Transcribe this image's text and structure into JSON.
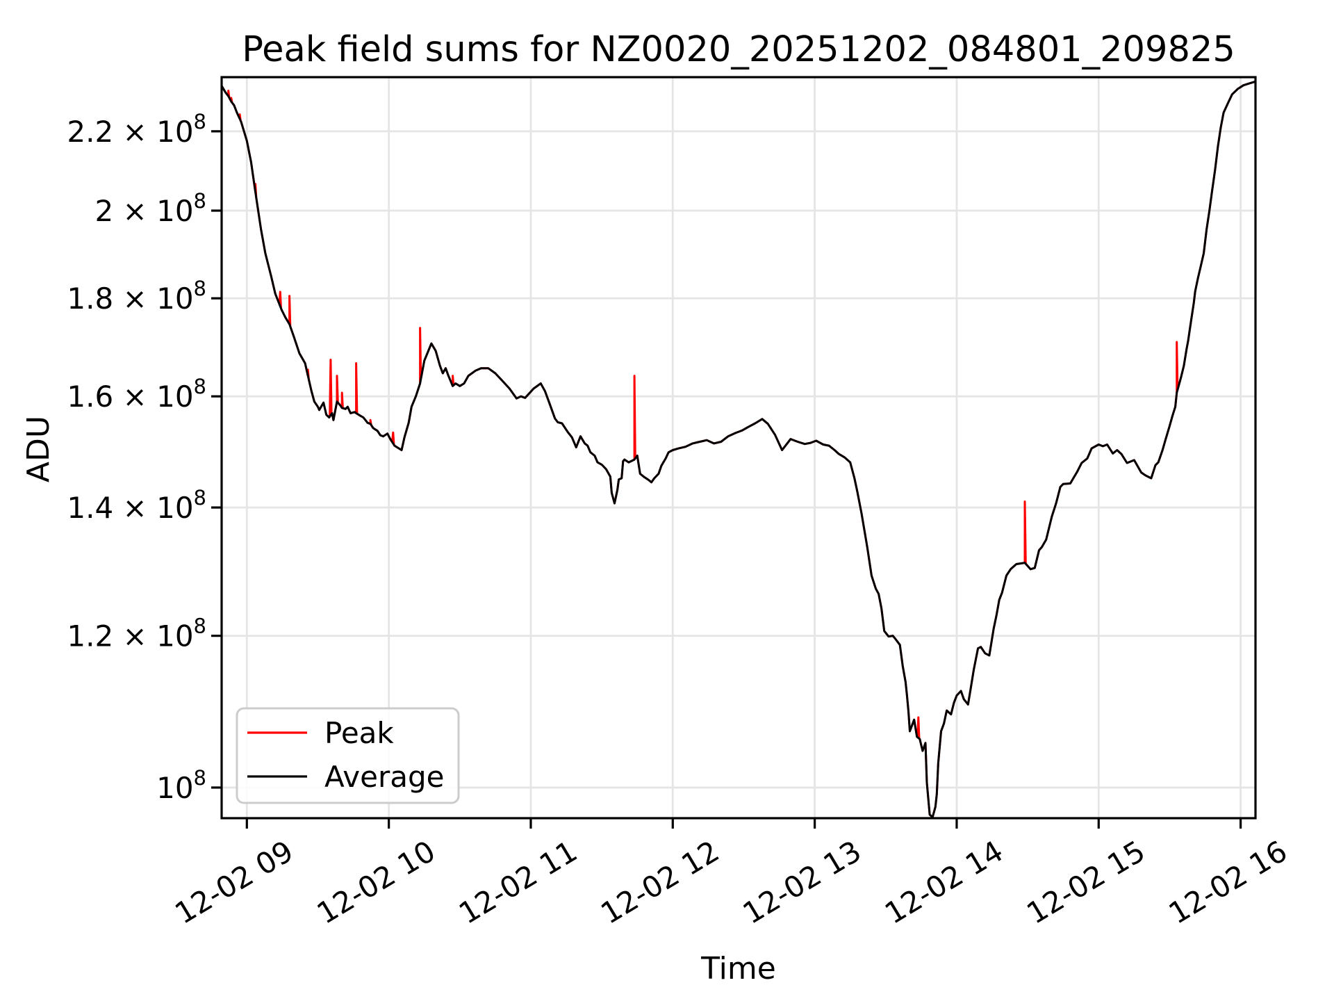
{
  "chart_data": {
    "type": "line",
    "title": "Peak field sums for NZ0020_20251202_084801_209825",
    "xlabel": "Time",
    "ylabel": "ADU",
    "x_unit": "decimal hours on 2025-12-02",
    "value_unit": "ADU in units of 1e8",
    "yscale": "log",
    "grid": true,
    "legend_position": "lower left",
    "xlim_hours": [
      8.82,
      16.11
    ],
    "ylim_e8": [
      0.963,
      2.35
    ],
    "x_ticks": {
      "hours": [
        9,
        10,
        11,
        12,
        13,
        14,
        15,
        16
      ],
      "labels": [
        "12-02 09",
        "12-02 10",
        "12-02 11",
        "12-02 12",
        "12-02 13",
        "12-02 14",
        "12-02 15",
        "12-02 16"
      ]
    },
    "y_ticks": [
      {
        "value_e8": 2.2,
        "mantissa": "2.2 × 10",
        "exponent": "8"
      },
      {
        "value_e8": 2.0,
        "mantissa": "2 × 10",
        "exponent": "8"
      },
      {
        "value_e8": 1.8,
        "mantissa": "1.8 × 10",
        "exponent": "8"
      },
      {
        "value_e8": 1.6,
        "mantissa": "1.6 × 10",
        "exponent": "8"
      },
      {
        "value_e8": 1.4,
        "mantissa": "1.4 × 10",
        "exponent": "8"
      },
      {
        "value_e8": 1.2,
        "mantissa": "1.2 × 10",
        "exponent": "8"
      },
      {
        "value_e8": 1.0,
        "mantissa": "10",
        "exponent": "8"
      }
    ],
    "series": {
      "average": {
        "name": "Average",
        "color": "#000000",
        "points": [
          [
            8.82,
            2.325
          ],
          [
            8.85,
            2.305
          ],
          [
            8.87,
            2.295
          ],
          [
            8.89,
            2.28
          ],
          [
            8.91,
            2.27
          ],
          [
            8.93,
            2.25
          ],
          [
            8.96,
            2.225
          ],
          [
            9.0,
            2.175
          ],
          [
            9.03,
            2.12
          ],
          [
            9.06,
            2.045
          ],
          [
            9.08,
            2.0
          ],
          [
            9.1,
            1.955
          ],
          [
            9.13,
            1.9
          ],
          [
            9.17,
            1.85
          ],
          [
            9.2,
            1.81
          ],
          [
            9.245,
            1.775
          ],
          [
            9.27,
            1.76
          ],
          [
            9.3,
            1.745
          ],
          [
            9.33,
            1.72
          ],
          [
            9.37,
            1.685
          ],
          [
            9.41,
            1.665
          ],
          [
            9.43,
            1.64
          ],
          [
            9.455,
            1.61
          ],
          [
            9.475,
            1.59
          ],
          [
            9.5,
            1.58
          ],
          [
            9.51,
            1.574
          ],
          [
            9.54,
            1.588
          ],
          [
            9.56,
            1.565
          ],
          [
            9.58,
            1.56
          ],
          [
            9.6,
            1.568
          ],
          [
            9.61,
            1.555
          ],
          [
            9.635,
            1.59
          ],
          [
            9.66,
            1.582
          ],
          [
            9.67,
            1.578
          ],
          [
            9.695,
            1.576
          ],
          [
            9.71,
            1.58
          ],
          [
            9.73,
            1.568
          ],
          [
            9.76,
            1.57
          ],
          [
            9.77,
            1.568
          ],
          [
            9.8,
            1.563
          ],
          [
            9.82,
            1.56
          ],
          [
            9.85,
            1.55
          ],
          [
            9.87,
            1.548
          ],
          [
            9.89,
            1.54
          ],
          [
            9.92,
            1.535
          ],
          [
            9.94,
            1.527
          ],
          [
            9.96,
            1.525
          ],
          [
            9.99,
            1.53
          ],
          [
            10.01,
            1.52
          ],
          [
            10.04,
            1.508
          ],
          [
            10.09,
            1.5
          ],
          [
            10.11,
            1.523
          ],
          [
            10.14,
            1.55
          ],
          [
            10.16,
            1.58
          ],
          [
            10.19,
            1.6
          ],
          [
            10.22,
            1.625
          ],
          [
            10.25,
            1.67
          ],
          [
            10.3,
            1.705
          ],
          [
            10.33,
            1.69
          ],
          [
            10.36,
            1.66
          ],
          [
            10.38,
            1.645
          ],
          [
            10.4,
            1.655
          ],
          [
            10.42,
            1.64
          ],
          [
            10.45,
            1.62
          ],
          [
            10.47,
            1.625
          ],
          [
            10.5,
            1.62
          ],
          [
            10.53,
            1.625
          ],
          [
            10.56,
            1.64
          ],
          [
            10.61,
            1.65
          ],
          [
            10.65,
            1.655
          ],
          [
            10.7,
            1.655
          ],
          [
            10.75,
            1.645
          ],
          [
            10.8,
            1.63
          ],
          [
            10.85,
            1.615
          ],
          [
            10.9,
            1.596
          ],
          [
            10.93,
            1.6
          ],
          [
            10.96,
            1.597
          ],
          [
            11.02,
            1.615
          ],
          [
            11.07,
            1.625
          ],
          [
            11.1,
            1.61
          ],
          [
            11.13,
            1.588
          ],
          [
            11.17,
            1.558
          ],
          [
            11.19,
            1.551
          ],
          [
            11.22,
            1.549
          ],
          [
            11.26,
            1.533
          ],
          [
            11.29,
            1.523
          ],
          [
            11.32,
            1.505
          ],
          [
            11.35,
            1.525
          ],
          [
            11.38,
            1.512
          ],
          [
            11.4,
            1.508
          ],
          [
            11.42,
            1.496
          ],
          [
            11.45,
            1.49
          ],
          [
            11.47,
            1.478
          ],
          [
            11.5,
            1.474
          ],
          [
            11.53,
            1.466
          ],
          [
            11.56,
            1.453
          ],
          [
            11.57,
            1.425
          ],
          [
            11.59,
            1.407
          ],
          [
            11.61,
            1.43
          ],
          [
            11.62,
            1.448
          ],
          [
            11.64,
            1.45
          ],
          [
            11.65,
            1.48
          ],
          [
            11.66,
            1.483
          ],
          [
            11.69,
            1.478
          ],
          [
            11.73,
            1.483
          ],
          [
            11.75,
            1.49
          ],
          [
            11.77,
            1.458
          ],
          [
            11.8,
            1.452
          ],
          [
            11.83,
            1.447
          ],
          [
            11.85,
            1.443
          ],
          [
            11.87,
            1.45
          ],
          [
            11.9,
            1.458
          ],
          [
            11.92,
            1.472
          ],
          [
            11.95,
            1.485
          ],
          [
            11.97,
            1.496
          ],
          [
            12.0,
            1.5
          ],
          [
            12.04,
            1.503
          ],
          [
            12.09,
            1.506
          ],
          [
            12.14,
            1.512
          ],
          [
            12.19,
            1.515
          ],
          [
            12.24,
            1.518
          ],
          [
            12.29,
            1.512
          ],
          [
            12.34,
            1.515
          ],
          [
            12.39,
            1.525
          ],
          [
            12.44,
            1.531
          ],
          [
            12.49,
            1.536
          ],
          [
            12.53,
            1.542
          ],
          [
            12.58,
            1.549
          ],
          [
            12.63,
            1.557
          ],
          [
            12.67,
            1.548
          ],
          [
            12.72,
            1.528
          ],
          [
            12.77,
            1.5
          ],
          [
            12.83,
            1.52
          ],
          [
            12.88,
            1.515
          ],
          [
            12.93,
            1.511
          ],
          [
            12.97,
            1.513
          ],
          [
            13.01,
            1.517
          ],
          [
            13.06,
            1.51
          ],
          [
            13.1,
            1.508
          ],
          [
            13.14,
            1.5
          ],
          [
            13.17,
            1.493
          ],
          [
            13.21,
            1.487
          ],
          [
            13.25,
            1.478
          ],
          [
            13.28,
            1.45
          ],
          [
            13.3,
            1.427
          ],
          [
            13.33,
            1.39
          ],
          [
            13.37,
            1.335
          ],
          [
            13.4,
            1.29
          ],
          [
            13.43,
            1.27
          ],
          [
            13.45,
            1.262
          ],
          [
            13.47,
            1.24
          ],
          [
            13.49,
            1.207
          ],
          [
            13.52,
            1.199
          ],
          [
            13.55,
            1.2
          ],
          [
            13.57,
            1.195
          ],
          [
            13.6,
            1.187
          ],
          [
            13.62,
            1.157
          ],
          [
            13.64,
            1.135
          ],
          [
            13.65,
            1.117
          ],
          [
            13.66,
            1.096
          ],
          [
            13.67,
            1.07
          ],
          [
            13.7,
            1.085
          ],
          [
            13.72,
            1.063
          ],
          [
            13.74,
            1.06
          ],
          [
            13.76,
            1.045
          ],
          [
            13.78,
            1.055
          ],
          [
            13.79,
            1.006
          ],
          [
            13.81,
            0.968
          ],
          [
            13.83,
            0.965
          ],
          [
            13.85,
            0.977
          ],
          [
            13.86,
            0.992
          ],
          [
            13.87,
            1.03
          ],
          [
            13.89,
            1.07
          ],
          [
            13.91,
            1.08
          ],
          [
            13.93,
            1.097
          ],
          [
            13.96,
            1.092
          ],
          [
            13.98,
            1.107
          ],
          [
            14.0,
            1.117
          ],
          [
            14.03,
            1.123
          ],
          [
            14.05,
            1.112
          ],
          [
            14.08,
            1.105
          ],
          [
            14.1,
            1.128
          ],
          [
            14.12,
            1.152
          ],
          [
            14.15,
            1.182
          ],
          [
            14.17,
            1.184
          ],
          [
            14.2,
            1.175
          ],
          [
            14.23,
            1.172
          ],
          [
            14.26,
            1.21
          ],
          [
            14.28,
            1.23
          ],
          [
            14.3,
            1.253
          ],
          [
            14.32,
            1.264
          ],
          [
            14.35,
            1.29
          ],
          [
            14.38,
            1.3
          ],
          [
            14.42,
            1.308
          ],
          [
            14.48,
            1.31
          ],
          [
            14.52,
            1.3
          ],
          [
            14.55,
            1.302
          ],
          [
            14.58,
            1.33
          ],
          [
            14.6,
            1.335
          ],
          [
            14.63,
            1.347
          ],
          [
            14.67,
            1.385
          ],
          [
            14.7,
            1.407
          ],
          [
            14.73,
            1.435
          ],
          [
            14.75,
            1.44
          ],
          [
            14.8,
            1.441
          ],
          [
            14.85,
            1.462
          ],
          [
            14.88,
            1.477
          ],
          [
            14.92,
            1.485
          ],
          [
            14.95,
            1.503
          ],
          [
            15.0,
            1.51
          ],
          [
            15.03,
            1.507
          ],
          [
            15.06,
            1.51
          ],
          [
            15.1,
            1.494
          ],
          [
            15.13,
            1.5
          ],
          [
            15.16,
            1.493
          ],
          [
            15.2,
            1.477
          ],
          [
            15.25,
            1.482
          ],
          [
            15.3,
            1.46
          ],
          [
            15.33,
            1.455
          ],
          [
            15.37,
            1.45
          ],
          [
            15.4,
            1.473
          ],
          [
            15.42,
            1.478
          ],
          [
            15.45,
            1.5
          ],
          [
            15.47,
            1.518
          ],
          [
            15.5,
            1.544
          ],
          [
            15.52,
            1.563
          ],
          [
            15.54,
            1.58
          ],
          [
            15.55,
            1.607
          ],
          [
            15.58,
            1.637
          ],
          [
            15.6,
            1.66
          ],
          [
            15.62,
            1.695
          ],
          [
            15.63,
            1.71
          ],
          [
            15.65,
            1.75
          ],
          [
            15.67,
            1.79
          ],
          [
            15.68,
            1.815
          ],
          [
            15.7,
            1.845
          ],
          [
            15.72,
            1.872
          ],
          [
            15.74,
            1.9
          ],
          [
            15.76,
            1.955
          ],
          [
            15.78,
            2.0
          ],
          [
            15.8,
            2.05
          ],
          [
            15.82,
            2.1
          ],
          [
            15.84,
            2.16
          ],
          [
            15.86,
            2.21
          ],
          [
            15.88,
            2.25
          ],
          [
            15.91,
            2.275
          ],
          [
            15.94,
            2.3
          ],
          [
            15.98,
            2.315
          ],
          [
            16.02,
            2.325
          ],
          [
            16.06,
            2.33
          ],
          [
            16.1,
            2.335
          ]
        ]
      },
      "peak": {
        "name": "Peak",
        "color": "#ff0000",
        "same_as": "average",
        "spikes": [
          [
            8.87,
            2.31
          ],
          [
            8.89,
            2.29
          ],
          [
            8.95,
            2.245
          ],
          [
            9.06,
            2.065
          ],
          [
            9.235,
            1.814
          ],
          [
            9.3,
            1.805
          ],
          [
            9.43,
            1.652
          ],
          [
            9.59,
            1.672
          ],
          [
            9.635,
            1.64
          ],
          [
            9.67,
            1.607
          ],
          [
            9.77,
            1.665
          ],
          [
            9.87,
            1.555
          ],
          [
            10.03,
            1.532
          ],
          [
            10.22,
            1.737
          ],
          [
            10.45,
            1.64
          ],
          [
            11.73,
            1.64
          ],
          [
            13.73,
            1.088
          ],
          [
            14.48,
            1.41
          ],
          [
            15.55,
            1.708
          ]
        ]
      }
    }
  },
  "legend": {
    "entries": [
      {
        "label": "Peak",
        "color": "#ff0000"
      },
      {
        "label": "Average",
        "color": "#000000"
      }
    ]
  },
  "style": {
    "grid_color": "#e5e5e5",
    "spine_color": "#000000",
    "legend_border_color": "#cccccc",
    "background": "#ffffff"
  }
}
